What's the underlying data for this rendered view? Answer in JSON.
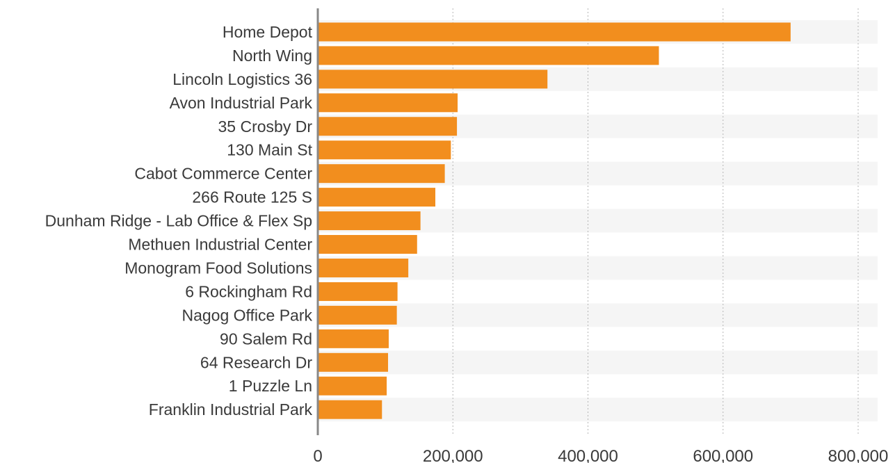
{
  "chart_data": {
    "type": "bar",
    "orientation": "horizontal",
    "categories": [
      "Home Depot",
      "North Wing",
      "Lincoln Logistics 36",
      "Avon Industrial Park",
      "35 Crosby Dr",
      "130 Main St",
      "Cabot Commerce Center",
      "266 Route 125 S",
      "Dunham Ridge - Lab Office & Flex Sp",
      "Methuen Industrial Center",
      "Monogram Food Solutions",
      "6 Rockingham Rd",
      "Nagog Office Park",
      "90 Salem Rd",
      "64 Research Dr",
      "1 Puzzle Ln",
      "Franklin Industrial Park"
    ],
    "values": [
      700000,
      505000,
      340000,
      207000,
      206000,
      197000,
      188000,
      174000,
      152000,
      147000,
      134000,
      118000,
      117000,
      105000,
      104000,
      102000,
      95000
    ],
    "xlim": [
      0,
      800000
    ],
    "xticks": [
      0,
      200000,
      400000,
      600000,
      800000
    ],
    "xtick_labels": [
      "0",
      "200,000",
      "400,000",
      "600,000",
      "800,000"
    ],
    "grid": "vertical dotted",
    "bar_color": "#f28e1e",
    "band_color": "#f5f5f5",
    "title": "",
    "xlabel": "",
    "ylabel": ""
  }
}
